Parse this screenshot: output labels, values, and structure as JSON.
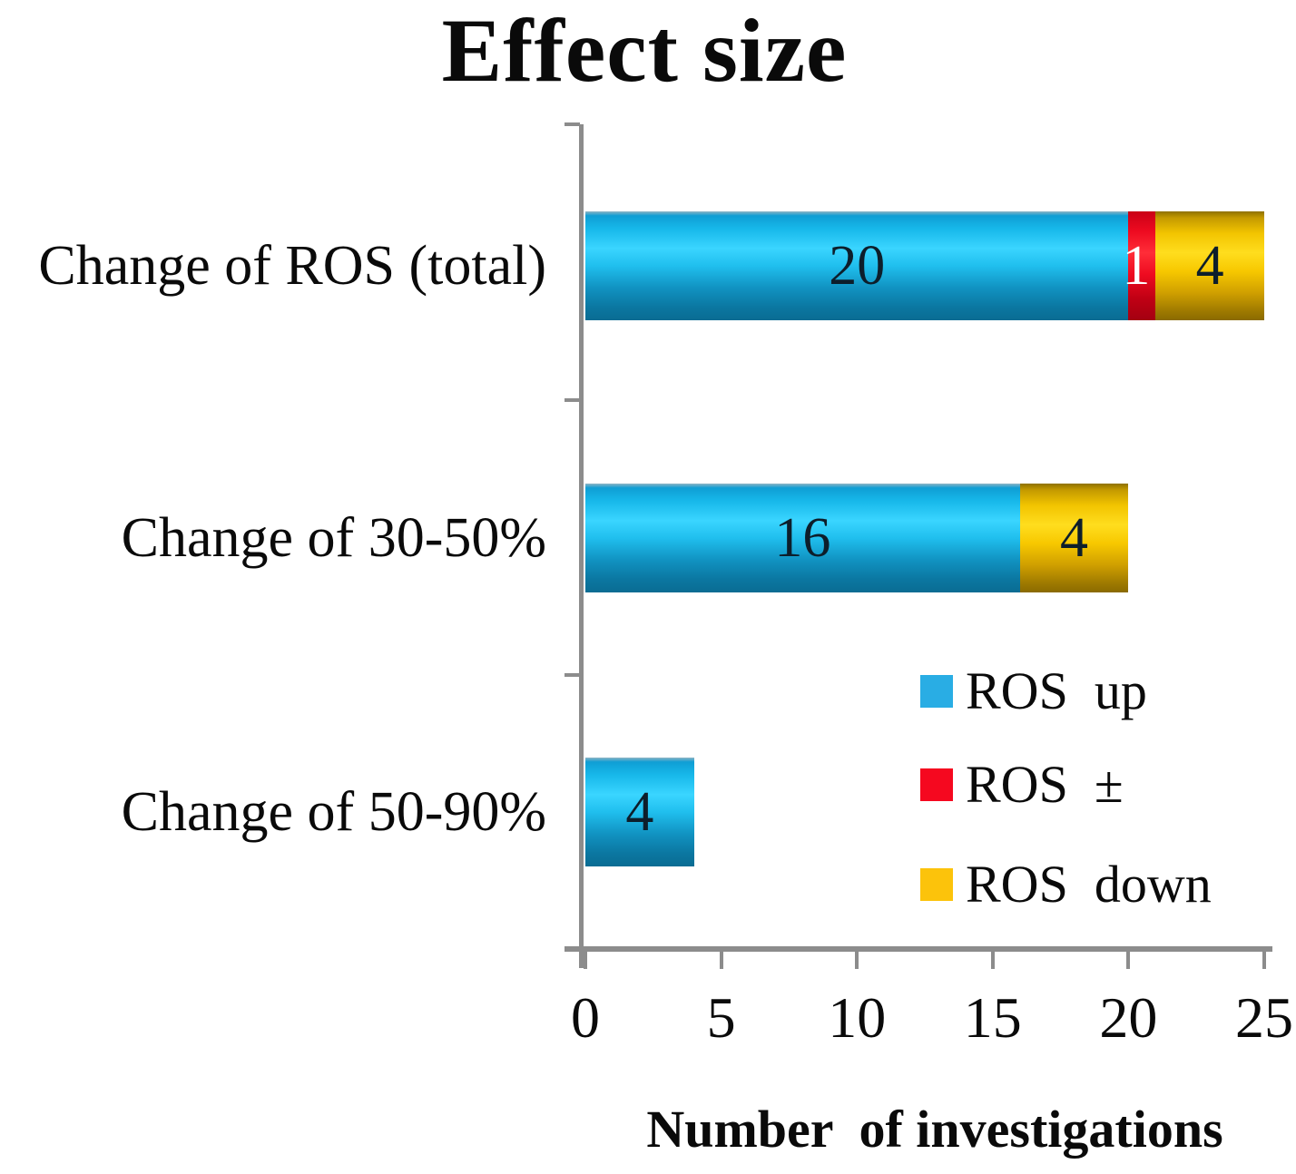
{
  "chart_data": {
    "type": "bar",
    "orientation": "horizontal",
    "stacked": true,
    "title": "Effect size",
    "xlabel": "Number  of investigations",
    "ylabel": "",
    "categories": [
      "Change of ROS (total)",
      "Change of 30-50%",
      "Change of 50-90%"
    ],
    "series": [
      {
        "name": "ROS  up",
        "color": "#29ade4",
        "values": [
          20,
          16,
          4
        ]
      },
      {
        "name": "ROS  ±",
        "color": "#f5081f",
        "values": [
          1,
          0,
          0
        ]
      },
      {
        "name": "ROS  down",
        "color": "#fcc30b",
        "values": [
          4,
          4,
          0
        ]
      }
    ],
    "bar_value_labels": [
      [
        20,
        1,
        4
      ],
      [
        16,
        4
      ],
      [
        4
      ]
    ],
    "x_ticks": [
      "0",
      "5",
      "10",
      "15",
      "20",
      "25"
    ],
    "xlim": [
      0,
      25
    ],
    "grid": false,
    "legend_position": "inside-lower-right",
    "axis_color": "#8c8c8c",
    "value_label_color": "#0d1e2b",
    "value_label_color_on_red": "#ffffff"
  }
}
